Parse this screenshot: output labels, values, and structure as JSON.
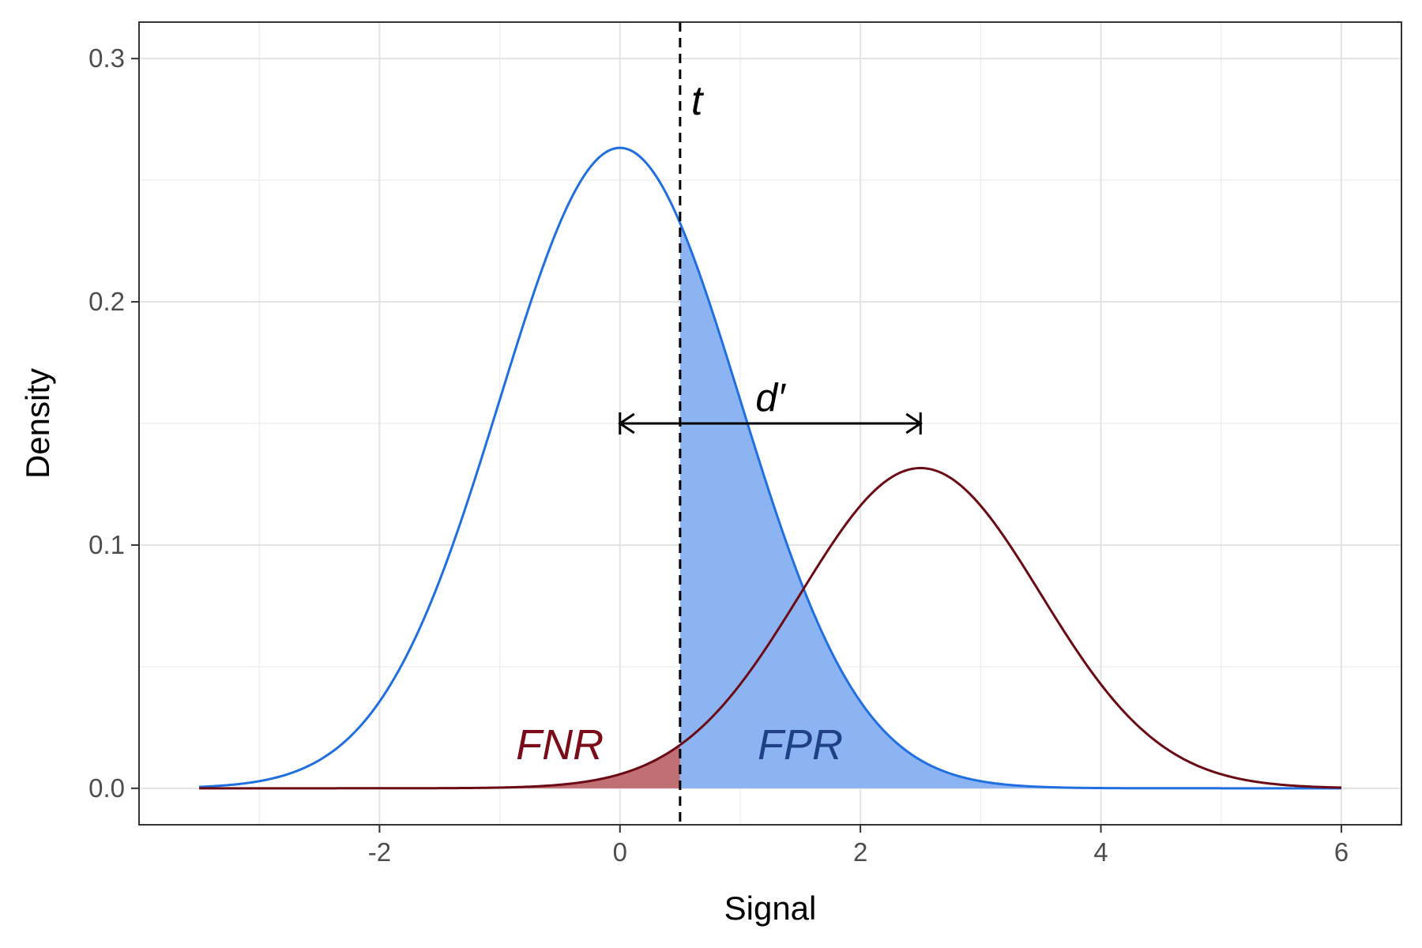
{
  "chart_data": {
    "type": "area",
    "title": "",
    "xlabel": "Signal",
    "ylabel": "Density",
    "xlim": [
      -4,
      6.5
    ],
    "ylim": [
      -0.015,
      0.315
    ],
    "x_ticks": [
      -2,
      0,
      2,
      4,
      6
    ],
    "x_tick_labels": [
      "-2",
      "0",
      "2",
      "4",
      "6"
    ],
    "y_ticks": [
      0.0,
      0.1,
      0.2,
      0.3
    ],
    "y_tick_labels": [
      "0.0",
      "0.1",
      "0.2",
      "0.3"
    ],
    "grid": true,
    "threshold": 0.5,
    "x_range": [
      -3.5,
      6
    ],
    "series": [
      {
        "distribution": "normal",
        "mean": 0,
        "sd": 1,
        "scale": 0.66,
        "color": "#1f6fe0",
        "fill_color": "#8db4f2",
        "fill_side": "right-of-threshold"
      },
      {
        "distribution": "normal",
        "mean": 2.5,
        "sd": 1,
        "scale": 0.33,
        "color": "#6b0a14",
        "fill_color": "#c07074",
        "fill_side": "left-of-threshold"
      }
    ],
    "annotations": {
      "threshold_label": "t",
      "dprime_label": "d′",
      "dprime_from": 0,
      "dprime_to": 2.5,
      "dprime_y": 0.15,
      "fnr_label": "FNR",
      "fnr_color": "#7a0c1a",
      "fpr_label": "FPR",
      "fpr_color": "#1f3f86"
    }
  }
}
